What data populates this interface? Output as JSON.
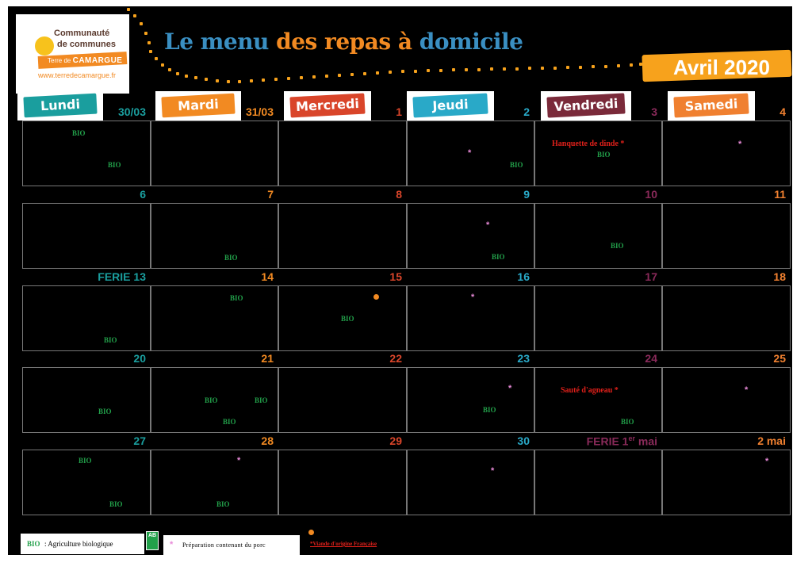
{
  "logo": {
    "line1": "Communauté",
    "line2": "de communes",
    "brand_small": "Terre de",
    "brand_big": "CAMARGUE",
    "url": "www.terredecamargue.fr"
  },
  "title": {
    "part1": "Le menu",
    "part2": "des repas à",
    "part3": "domicile"
  },
  "month_label": "Avril 2020",
  "colors": {
    "lundi": "#1a9e9e",
    "mardi": "#f28a22",
    "mercredi": "#d9452a",
    "jeudi": "#29a9c8",
    "vendredi": "#7a2a3a",
    "samedi": "#f08030",
    "bio": "#22a04a",
    "pork": "#e88ad8",
    "meal": "#e0201a"
  },
  "days": [
    "Lundi",
    "Mardi",
    "Mercredi",
    "Jeudi",
    "Vendredi",
    "Samedi"
  ],
  "weeks": [
    {
      "dates": [
        "30/03",
        "31/03",
        "1",
        "2",
        "3",
        "4"
      ]
    },
    {
      "dates": [
        "6",
        "7",
        "8",
        "9",
        "10",
        "11"
      ]
    },
    {
      "dates": [
        "FERIE 13",
        "14",
        "15",
        "16",
        "17",
        "18"
      ]
    },
    {
      "dates": [
        "20",
        "21",
        "22",
        "23",
        "24",
        "25"
      ]
    },
    {
      "dates": [
        "27",
        "28",
        "29",
        "30",
        "FERIE 1",
        "2 mai"
      ]
    }
  ],
  "ferie_may_sup": "er",
  "ferie_may_suffix": " mai",
  "meals": {
    "w0_vendredi": "Hanquette de dinde *",
    "w3_vendredi": "Sauté d'agneau *"
  },
  "bio_label": "BIO",
  "pork_symbol": "*",
  "legend": {
    "bio_tag": "BIO",
    "bio_text": ": Agriculture biologique",
    "ab_logo": "AB",
    "pork_symbol": "*",
    "pork_text": "Préparation contenant du porc",
    "viande_text": "*Viande d'origine Française"
  }
}
